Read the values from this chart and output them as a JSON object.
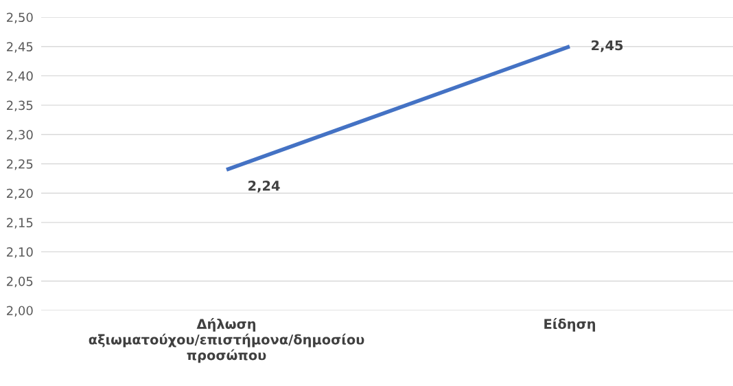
{
  "chart_data": {
    "type": "line",
    "categories": [
      "Δήλωση αξιωματούχου/επιστήμονα/δημοσίου προσώπου",
      "Είδηση"
    ],
    "series": [
      {
        "color": "#4472c4",
        "values": [
          2.24,
          2.45
        ],
        "value_labels": [
          "2,24",
          "2,45"
        ]
      }
    ],
    "ylim": [
      2.0,
      2.5
    ],
    "yticks": [
      {
        "value": 2.0,
        "label": "2,00"
      },
      {
        "value": 2.05,
        "label": "2,05"
      },
      {
        "value": 2.1,
        "label": "2,10"
      },
      {
        "value": 2.15,
        "label": "2,15"
      },
      {
        "value": 2.2,
        "label": "2,20"
      },
      {
        "value": 2.25,
        "label": "2,25"
      },
      {
        "value": 2.3,
        "label": "2,30"
      },
      {
        "value": 2.35,
        "label": "2,35"
      },
      {
        "value": 2.4,
        "label": "2,40"
      },
      {
        "value": 2.45,
        "label": "2,45"
      },
      {
        "value": 2.5,
        "label": "2,50"
      }
    ],
    "grid": "y",
    "marker": "none",
    "line_style": "solid",
    "legend": false
  }
}
